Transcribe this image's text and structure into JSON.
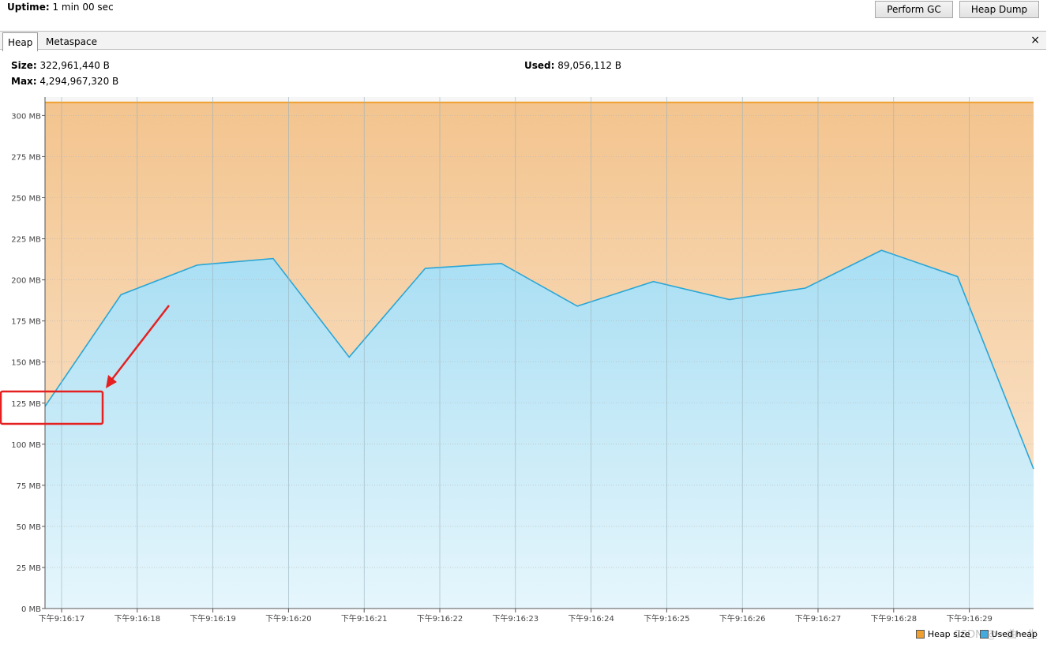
{
  "uptime": {
    "label": "Uptime:",
    "value": "1 min 00 sec"
  },
  "buttons": {
    "perform_gc": "Perform GC",
    "heap_dump": "Heap Dump"
  },
  "tabs": [
    {
      "label": "Heap"
    },
    {
      "label": "Metaspace"
    }
  ],
  "close_glyph": "×",
  "stats": {
    "size_label": "Size:",
    "size_value": "322,961,440 B",
    "max_label": "Max:",
    "max_value": "4,294,967,320 B",
    "used_label": "Used:",
    "used_value": "89,056,112 B"
  },
  "chart_data": {
    "type": "area",
    "y_unit": "MB",
    "ylim": [
      0,
      310
    ],
    "y_ticks": [
      "0 MB",
      "25 MB",
      "50 MB",
      "75 MB",
      "100 MB",
      "125 MB",
      "150 MB",
      "175 MB",
      "200 MB",
      "225 MB",
      "250 MB",
      "275 MB",
      "300 MB"
    ],
    "x_tick_labels": [
      "下午9:16:17",
      "下午9:16:18",
      "下午9:16:19",
      "下午9:16:20",
      "下午9:16:21",
      "下午9:16:22",
      "下午9:16:23",
      "下午9:16:24",
      "下午9:16:25",
      "下午9:16:26",
      "下午9:16:27",
      "下午9:16:28",
      "下午9:16:29"
    ],
    "series": [
      {
        "name": "Heap size",
        "color": "#f0a030",
        "values": [
          308,
          308,
          308,
          308,
          308,
          308,
          308,
          308,
          308,
          308,
          308,
          308,
          308,
          308
        ]
      },
      {
        "name": "Used heap",
        "color": "#2aa6d6",
        "values": [
          123,
          191,
          209,
          213,
          153,
          207,
          210,
          184,
          199,
          188,
          195,
          218,
          202,
          85
        ]
      }
    ],
    "grid": true,
    "legend_position": "bottom-right"
  },
  "annotation": {
    "color": "#e52020"
  },
  "watermark": "CSDN @一曲一生"
}
